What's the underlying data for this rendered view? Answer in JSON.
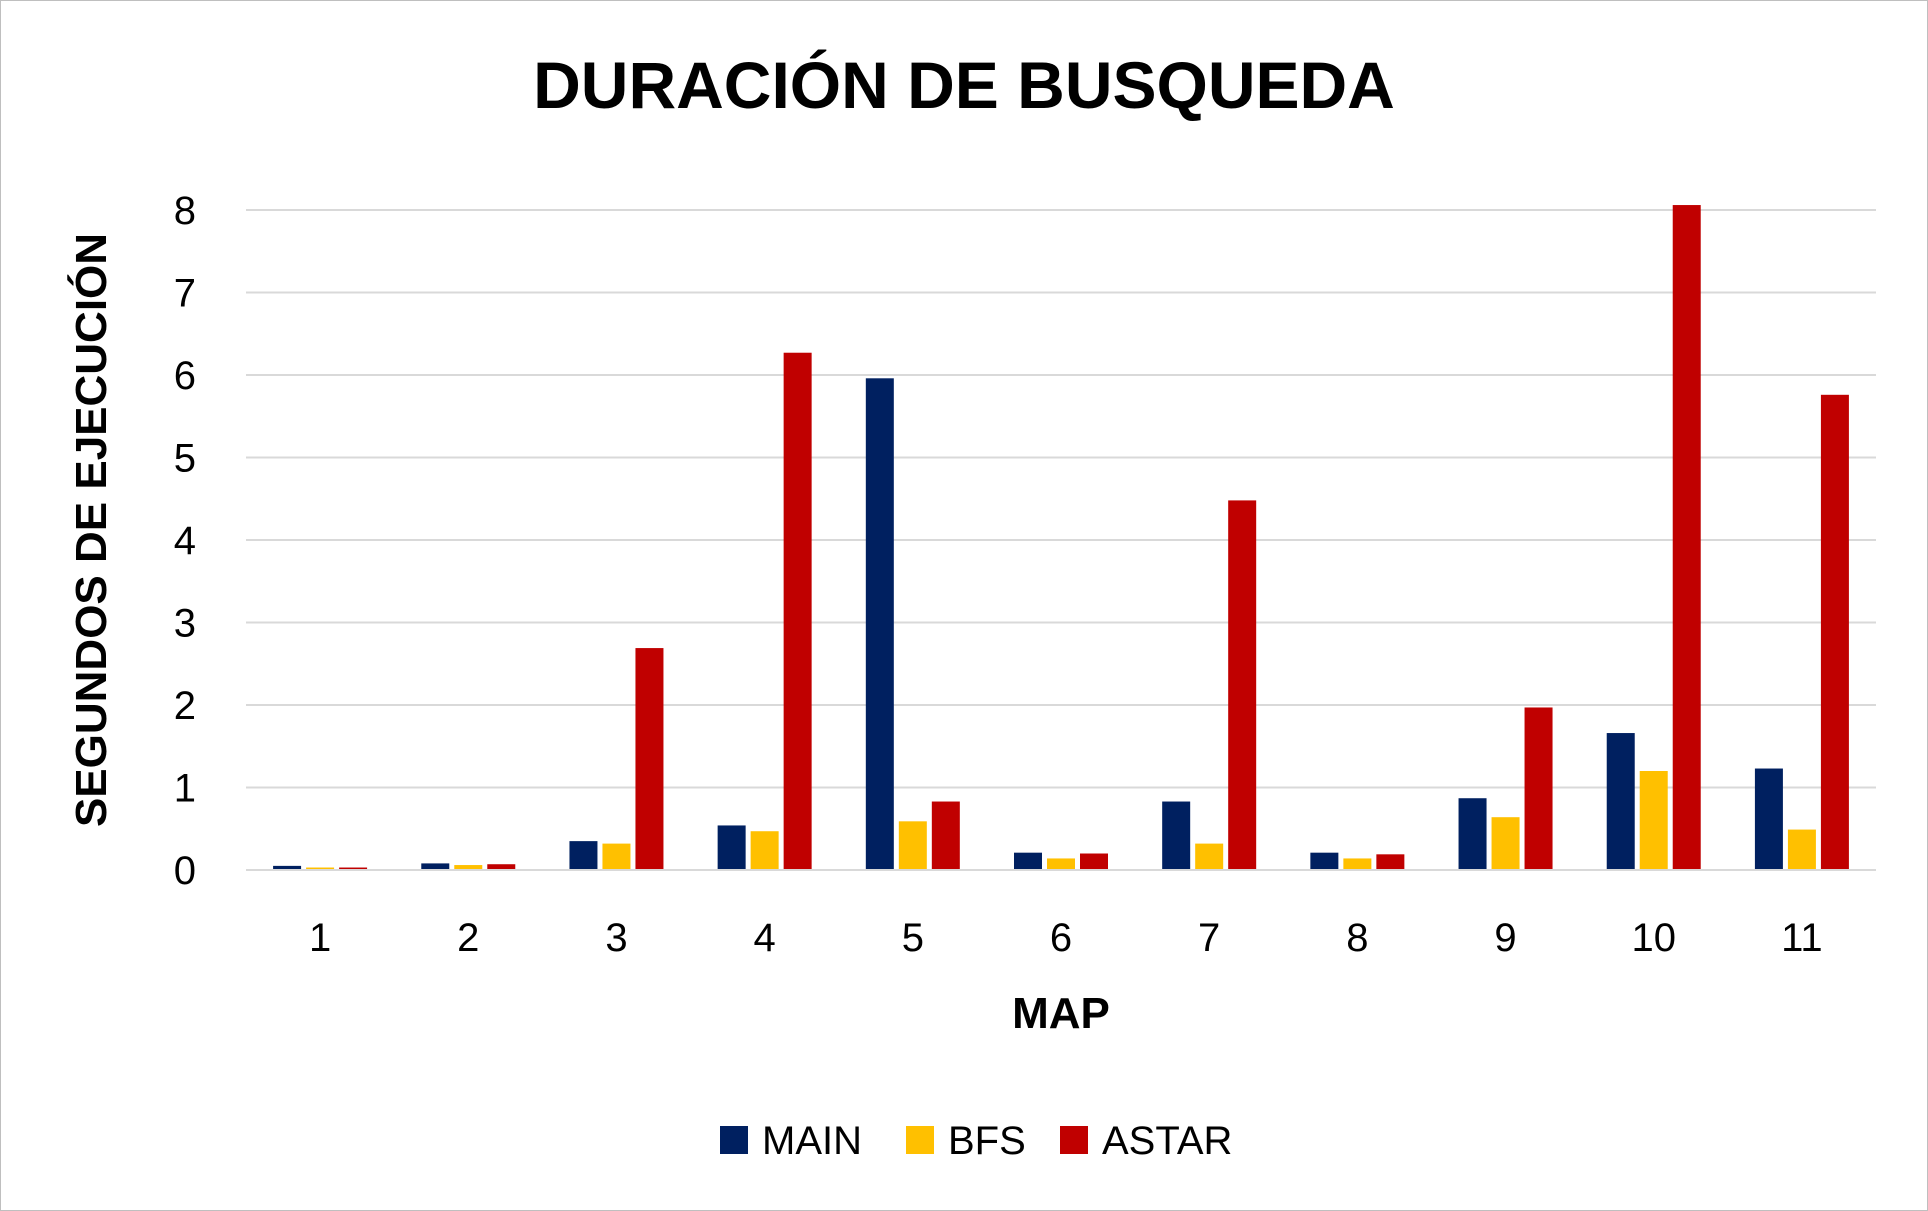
{
  "chart_data": {
    "type": "bar",
    "title": "DURACIÓN DE BUSQUEDA",
    "xlabel": "MAP",
    "ylabel": "SEGUNDOS DE EJECUCIÓN",
    "ylim": [
      0,
      8
    ],
    "yticks": [
      "0",
      "1",
      "2",
      "3",
      "4",
      "5",
      "6",
      "7",
      "8"
    ],
    "categories": [
      "1",
      "2",
      "3",
      "4",
      "5",
      "6",
      "7",
      "8",
      "9",
      "10",
      "11"
    ],
    "grid": true,
    "legend_position": "bottom",
    "series": [
      {
        "name": "MAIN",
        "color": "#002060",
        "values": [
          0.05,
          0.08,
          0.35,
          0.54,
          5.96,
          0.21,
          0.83,
          0.21,
          0.87,
          1.66,
          1.23
        ]
      },
      {
        "name": "BFS",
        "color": "#FFC000",
        "values": [
          0.03,
          0.06,
          0.32,
          0.47,
          0.59,
          0.14,
          0.32,
          0.14,
          0.64,
          1.2,
          0.49
        ]
      },
      {
        "name": "ASTAR",
        "color": "#C00000",
        "values": [
          0.03,
          0.07,
          2.69,
          6.27,
          0.83,
          0.2,
          4.48,
          0.19,
          1.97,
          8.06,
          5.76
        ]
      }
    ]
  }
}
